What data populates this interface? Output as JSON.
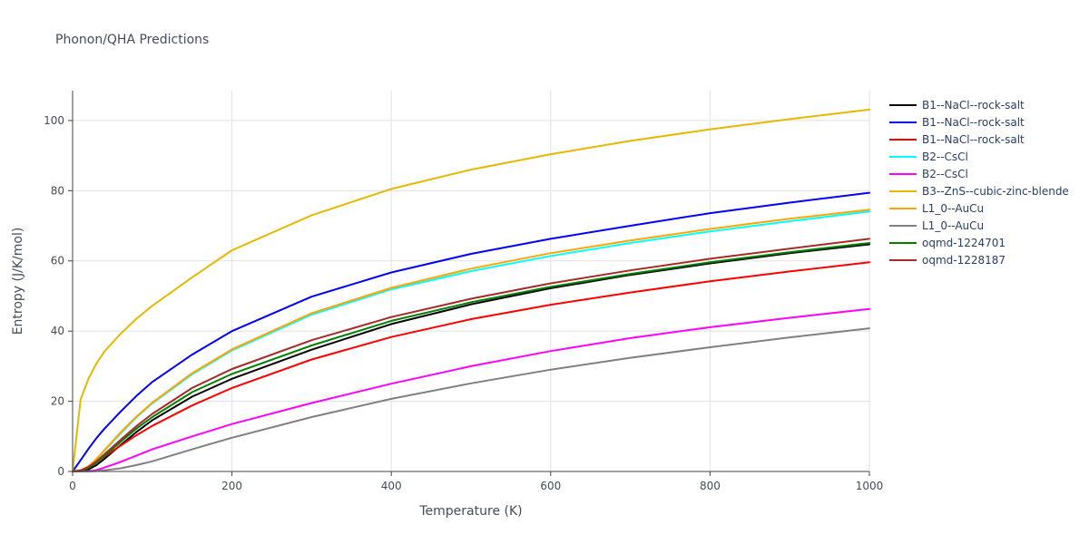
{
  "chart_data": {
    "type": "line",
    "title": "Phonon/QHA Predictions",
    "xlabel": "Temperature (K)",
    "ylabel": "Entropy (J/K/mol)",
    "xlim": [
      0,
      1000
    ],
    "ylim": [
      0,
      108.5
    ],
    "xticks": [
      0,
      200,
      400,
      600,
      800,
      1000
    ],
    "yticks": [
      0,
      20,
      40,
      60,
      80,
      100
    ],
    "grid": true,
    "legend_position": "right",
    "x": [
      0,
      10,
      20,
      30,
      40,
      60,
      80,
      100,
      150,
      200,
      300,
      400,
      500,
      600,
      700,
      800,
      900,
      1000
    ],
    "series": [
      {
        "name": "B1--NaCl--rock-salt",
        "color": "#000000",
        "values": [
          0,
          0.1,
          0.6,
          1.8,
          3.6,
          7.5,
          11.2,
          14.6,
          21.3,
          26.4,
          34.7,
          42.0,
          47.6,
          52.2,
          56.0,
          59.3,
          62.2,
          64.7
        ]
      },
      {
        "name": "B1--NaCl--rock-salt",
        "color": "#0000ff",
        "values": [
          0,
          3.2,
          6.5,
          9.5,
          12.2,
          17.0,
          21.5,
          25.5,
          33.3,
          40.0,
          49.8,
          56.7,
          62.0,
          66.3,
          70.0,
          73.6,
          76.6,
          79.4
        ]
      },
      {
        "name": "B1--NaCl--rock-salt",
        "color": "#ff0000",
        "values": [
          0,
          0.3,
          1.3,
          2.7,
          4.2,
          7.3,
          10.3,
          13.0,
          18.8,
          23.8,
          31.9,
          38.3,
          43.4,
          47.5,
          51.0,
          54.2,
          57.0,
          59.6
        ]
      },
      {
        "name": "B2--CsCl",
        "color": "#00ffff",
        "values": [
          0,
          0.3,
          1.4,
          3.5,
          5.9,
          10.8,
          15.4,
          19.4,
          27.7,
          34.5,
          44.7,
          51.9,
          57.1,
          61.4,
          65.1,
          68.4,
          71.3,
          74.1
        ]
      },
      {
        "name": "B2--CsCl",
        "color": "#ff00ff",
        "values": [
          0,
          0,
          0.1,
          0.4,
          1.1,
          2.7,
          4.5,
          6.3,
          10.0,
          13.5,
          19.5,
          25.0,
          30.0,
          34.3,
          38.0,
          41.1,
          43.8,
          46.3
        ]
      },
      {
        "name": "B3--ZnS--cubic-zinc-blende",
        "color": "#e6b800",
        "values": [
          0,
          20.5,
          26.5,
          30.8,
          34.2,
          39.2,
          43.5,
          47.2,
          55.3,
          63.0,
          73.0,
          80.5,
          86.0,
          90.4,
          94.2,
          97.5,
          100.4,
          103.1
        ]
      },
      {
        "name": "L1_0--AuCu",
        "color": "#ffa500",
        "values": [
          0,
          0.3,
          1.5,
          3.6,
          6.1,
          11.1,
          15.6,
          19.6,
          28.0,
          34.8,
          45.1,
          52.3,
          57.8,
          62.2,
          65.8,
          69.1,
          72.0,
          74.6
        ]
      },
      {
        "name": "L1_0--AuCu",
        "color": "#808080",
        "values": [
          0,
          0,
          0,
          0.1,
          0.3,
          0.9,
          1.8,
          2.9,
          6.3,
          9.6,
          15.5,
          20.7,
          25.1,
          29.0,
          32.4,
          35.4,
          38.2,
          40.8
        ]
      },
      {
        "name": "oqmd-1224701",
        "color": "#008000",
        "values": [
          0,
          0.2,
          1.0,
          2.5,
          4.4,
          8.4,
          12.2,
          15.5,
          22.6,
          27.8,
          35.9,
          42.9,
          48.2,
          52.6,
          56.3,
          59.6,
          62.5,
          65.1
        ]
      },
      {
        "name": "oqmd-1228187",
        "color": "#a52a2a",
        "values": [
          0,
          0.3,
          1.3,
          2.9,
          4.9,
          9.0,
          12.9,
          16.4,
          23.8,
          29.2,
          37.4,
          44.0,
          49.2,
          53.6,
          57.3,
          60.6,
          63.5,
          66.3
        ]
      }
    ]
  }
}
